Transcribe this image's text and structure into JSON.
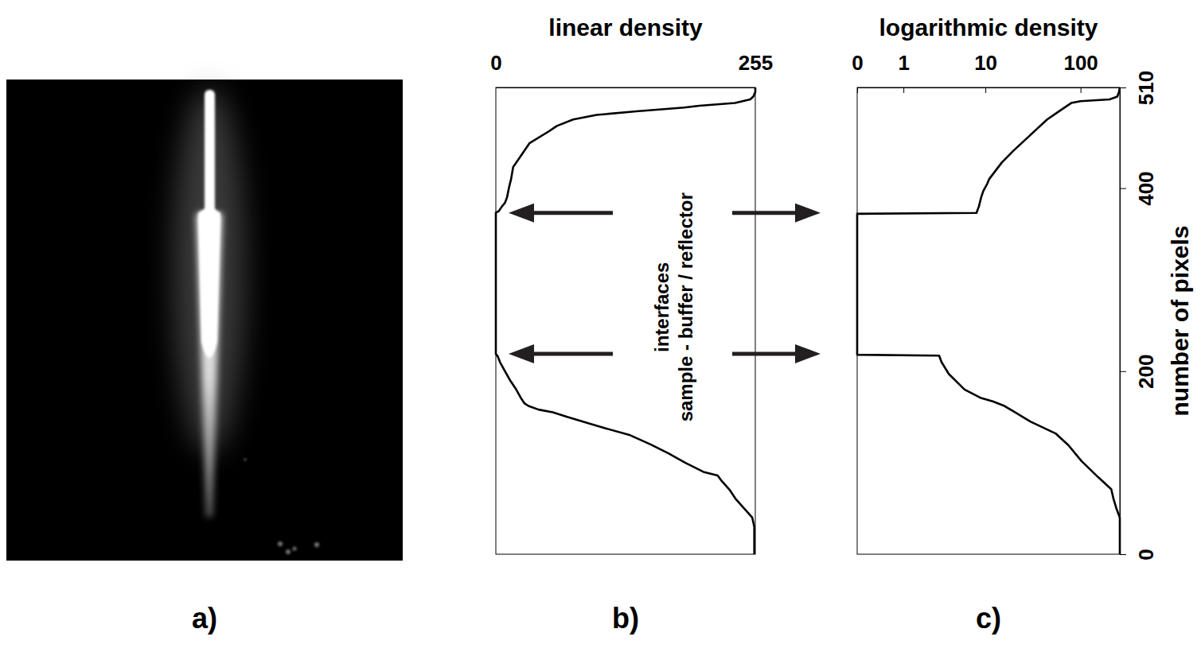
{
  "panel_a": {
    "label": "a)"
  },
  "annotation": {
    "lines": [
      "interfaces",
      "sample - buffer / reflector"
    ]
  },
  "chart_data": [
    {
      "type": "line",
      "label": "b)",
      "x_label": "linear density",
      "xlim": [
        0,
        255
      ],
      "xticks": [
        0,
        255
      ],
      "ylim": [
        0,
        510
      ],
      "tick_labels": "x",
      "color": "#000000",
      "y": [
        0,
        10,
        20,
        30,
        40,
        45,
        50,
        60,
        70,
        80,
        86,
        90,
        100,
        110,
        120,
        130,
        140,
        150,
        155,
        158,
        162,
        165,
        170,
        180,
        190,
        200,
        210,
        216,
        219,
        250,
        300,
        350,
        373,
        375,
        380,
        384,
        390,
        401,
        410,
        423,
        436,
        449,
        462,
        468,
        475,
        480,
        484,
        488,
        490,
        493,
        497,
        500,
        505,
        510
      ],
      "x": [
        254,
        254,
        254,
        254,
        252,
        248,
        244,
        236,
        230,
        222,
        218,
        204,
        186,
        170,
        152,
        132,
        100,
        70,
        56,
        42,
        32,
        28,
        25,
        20,
        14,
        9,
        4,
        2,
        0,
        0,
        0,
        0,
        0,
        3,
        6,
        9,
        11,
        13,
        15,
        17,
        25,
        33,
        52,
        60,
        76,
        99,
        138,
        185,
        200,
        235,
        250,
        253,
        255,
        255
      ]
    },
    {
      "type": "line",
      "label": "c)",
      "x_label": "logarithmic density",
      "y_label": "number of pixels",
      "log": "x",
      "xlim": [
        0,
        255
      ],
      "xticks": [
        0,
        1,
        10,
        100
      ],
      "ylim": [
        0,
        510
      ],
      "yticks": [
        0,
        200,
        400,
        510
      ],
      "color": "#000000",
      "y": [
        0,
        10,
        20,
        30,
        40,
        45,
        50,
        60,
        71,
        84,
        102,
        119,
        132,
        145,
        162,
        167,
        171,
        180,
        197,
        210,
        217,
        218,
        250,
        300,
        350,
        372,
        373,
        380,
        390,
        397,
        405,
        410,
        428,
        441,
        458,
        475,
        484,
        493,
        495,
        497,
        500,
        505,
        510
      ],
      "x": [
        255,
        255,
        255,
        255,
        255,
        245,
        235,
        220,
        208,
        153,
        102,
        75,
        55,
        30,
        16,
        12,
        8.8,
        5.9,
        3.9,
        3.2,
        3,
        0,
        0,
        0,
        0,
        0,
        8,
        8.5,
        9,
        9.5,
        10.5,
        11,
        15,
        20,
        30,
        45,
        60,
        80,
        100,
        200,
        240,
        250,
        255
      ]
    }
  ]
}
